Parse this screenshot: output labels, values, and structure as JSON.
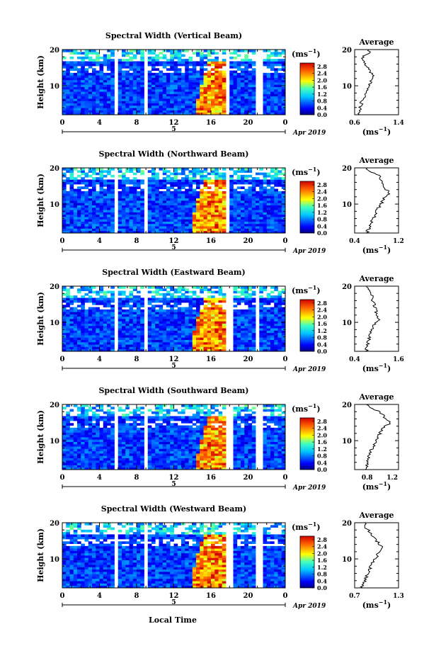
{
  "figure": {
    "x_axis_label": "Local Time",
    "date_label": "Apr 2019",
    "day_label": "5",
    "unit_label": "(ms",
    "unit_superscript": "−1",
    "unit_close": ")",
    "average_title": "Average",
    "colorbar_ticks": [
      "2.8",
      "2.4",
      "2.0",
      "1.6",
      "1.2",
      "0.8",
      "0.4",
      "0.0"
    ]
  },
  "chart_data": [
    {
      "type": "heatmap",
      "title": "Spectral Width (Vertical Beam)",
      "ylabel": "Height (km)",
      "xlabel": "Local Time",
      "xlim": [
        0,
        24
      ],
      "ylim": [
        2,
        20
      ],
      "x_ticks": [
        "0",
        "4",
        "8",
        "12",
        "16",
        "20",
        "0"
      ],
      "y_ticks": [
        10,
        20
      ],
      "colorbar": {
        "label": "(ms−1)",
        "range": [
          0.0,
          3.0
        ],
        "ticks": [
          0.0,
          0.4,
          0.8,
          1.2,
          1.6,
          2.0,
          2.4,
          2.8
        ]
      },
      "data_gaps_hours": [
        [
          5.8,
          6.0
        ],
        [
          8.9,
          9.1
        ],
        [
          17.7,
          17.9
        ],
        [
          21.2,
          21.4
        ]
      ],
      "enhanced_region": {
        "x_hours": [
          14.5,
          17.5
        ],
        "height_km": [
          2,
          17
        ]
      },
      "profile": {
        "title": "Average",
        "xlabel": "(ms−1)",
        "xlim": [
          0.6,
          1.4
        ],
        "x_ticks": [
          "0.6",
          "1.4"
        ],
        "y_ticks": [
          10,
          20
        ],
        "height_km": [
          2,
          4,
          6,
          8,
          10,
          12,
          13,
          14,
          16,
          18,
          19,
          20
        ],
        "values": [
          0.68,
          0.7,
          0.74,
          0.8,
          0.86,
          0.92,
          0.95,
          0.88,
          0.8,
          0.74,
          0.9,
          0.85
        ]
      }
    },
    {
      "type": "heatmap",
      "title": "Spectral Width (Northward Beam)",
      "ylabel": "Height (km)",
      "xlabel": "Local Time",
      "xlim": [
        0,
        24
      ],
      "ylim": [
        2,
        20
      ],
      "x_ticks": [
        "0",
        "4",
        "8",
        "12",
        "16",
        "20",
        "0"
      ],
      "y_ticks": [
        10,
        20
      ],
      "colorbar": {
        "label": "(ms−1)",
        "range": [
          0.0,
          3.0
        ],
        "ticks": [
          0.0,
          0.4,
          0.8,
          1.2,
          1.6,
          2.0,
          2.4,
          2.8
        ]
      },
      "data_gaps_hours": [
        [
          5.8,
          6.0
        ],
        [
          8.9,
          9.1
        ],
        [
          17.7,
          17.9
        ]
      ],
      "enhanced_region": {
        "x_hours": [
          14.0,
          17.5
        ],
        "height_km": [
          2,
          17
        ]
      },
      "profile": {
        "title": "Average",
        "xlabel": "(ms−1)",
        "xlim": [
          0.4,
          1.2
        ],
        "x_ticks": [
          "0.4",
          "1.2"
        ],
        "y_ticks": [
          10,
          20
        ],
        "height_km": [
          2,
          4,
          6,
          8,
          10,
          12,
          13,
          14,
          16,
          18,
          19,
          20
        ],
        "values": [
          0.62,
          0.68,
          0.74,
          0.8,
          0.88,
          0.96,
          1.02,
          0.98,
          0.9,
          0.84,
          0.7,
          0.6
        ]
      }
    },
    {
      "type": "heatmap",
      "title": "Spectral Width (Eastward Beam)",
      "ylabel": "Height (km)",
      "xlabel": "Local Time",
      "xlim": [
        0,
        24
      ],
      "ylim": [
        2,
        20
      ],
      "x_ticks": [
        "0",
        "4",
        "8",
        "12",
        "16",
        "20",
        "0"
      ],
      "y_ticks": [
        10,
        20
      ],
      "colorbar": {
        "label": "(ms−1)",
        "range": [
          0.0,
          3.0
        ],
        "ticks": [
          0.0,
          0.4,
          0.8,
          1.2,
          1.6,
          2.0,
          2.4,
          2.8
        ]
      },
      "data_gaps_hours": [
        [
          5.8,
          6.0
        ],
        [
          8.9,
          9.1
        ],
        [
          18.0,
          18.2
        ],
        [
          21.0,
          21.2
        ]
      ],
      "enhanced_region": {
        "x_hours": [
          14.0,
          17.5
        ],
        "height_km": [
          2,
          17
        ]
      },
      "profile": {
        "title": "Average",
        "xlabel": "(ms−1)",
        "xlim": [
          0.4,
          1.6
        ],
        "x_ticks": [
          "0.4",
          "1.6"
        ],
        "y_ticks": [
          10,
          20
        ],
        "height_km": [
          2,
          4,
          6,
          8,
          10,
          11,
          12,
          14,
          16,
          18,
          19,
          20
        ],
        "values": [
          0.72,
          0.76,
          0.8,
          0.86,
          0.95,
          1.08,
          1.0,
          0.96,
          0.9,
          0.84,
          0.76,
          0.7
        ]
      }
    },
    {
      "type": "heatmap",
      "title": "Spectral Width (Southward Beam)",
      "ylabel": "Height (km)",
      "xlabel": "Local Time",
      "xlim": [
        0,
        24
      ],
      "ylim": [
        2,
        20
      ],
      "x_ticks": [
        "0",
        "4",
        "8",
        "12",
        "16",
        "20",
        "0"
      ],
      "y_ticks": [
        10,
        20
      ],
      "colorbar": {
        "label": "(ms−1)",
        "range": [
          0.0,
          3.0
        ],
        "ticks": [
          0.0,
          0.4,
          0.8,
          1.2,
          1.6,
          2.0,
          2.4,
          2.8
        ]
      },
      "data_gaps_hours": [
        [
          5.8,
          6.0
        ],
        [
          8.9,
          9.1
        ],
        [
          18.0,
          18.2
        ],
        [
          21.2,
          21.4
        ]
      ],
      "enhanced_region": {
        "x_hours": [
          14.5,
          17.5
        ],
        "height_km": [
          2,
          17
        ]
      },
      "profile": {
        "title": "Average",
        "xlabel": "(ms−1)",
        "xlim": [
          0.6,
          1.3
        ],
        "x_ticks": [
          "0.8",
          "1.2"
        ],
        "y_ticks": [
          10,
          20
        ],
        "height_km": [
          2,
          4,
          6,
          8,
          10,
          12,
          14,
          15,
          16,
          18,
          19,
          20
        ],
        "values": [
          0.78,
          0.8,
          0.84,
          0.88,
          0.94,
          1.0,
          1.08,
          1.18,
          1.1,
          1.0,
          0.85,
          0.8
        ]
      }
    },
    {
      "type": "heatmap",
      "title": "Spectral Width (Westward Beam)",
      "ylabel": "Height (km)",
      "xlabel": "Local Time",
      "xlim": [
        0,
        24
      ],
      "ylim": [
        2,
        20
      ],
      "x_ticks": [
        "0",
        "4",
        "8",
        "12",
        "16",
        "20",
        "0"
      ],
      "y_ticks": [
        10,
        20
      ],
      "colorbar": {
        "label": "(ms−1)",
        "range": [
          0.0,
          3.0
        ],
        "ticks": [
          0.0,
          0.4,
          0.8,
          1.2,
          1.6,
          2.0,
          2.4,
          2.8
        ]
      },
      "data_gaps_hours": [
        [
          5.8,
          6.0
        ],
        [
          8.9,
          9.1
        ],
        [
          18.0,
          18.2
        ],
        [
          21.2,
          21.4
        ]
      ],
      "enhanced_region": {
        "x_hours": [
          14.0,
          17.5
        ],
        "height_km": [
          2,
          17
        ]
      },
      "profile": {
        "title": "Average",
        "xlabel": "(ms−1)",
        "xlim": [
          0.7,
          1.3
        ],
        "x_ticks": [
          "0.7",
          "1.3"
        ],
        "y_ticks": [
          10,
          20
        ],
        "height_km": [
          2,
          4,
          6,
          8,
          10,
          12,
          13,
          14,
          16,
          18,
          19,
          20
        ],
        "values": [
          0.8,
          0.84,
          0.88,
          0.92,
          0.98,
          1.04,
          1.1,
          1.04,
          0.96,
          0.88,
          0.82,
          0.84
        ]
      }
    }
  ]
}
